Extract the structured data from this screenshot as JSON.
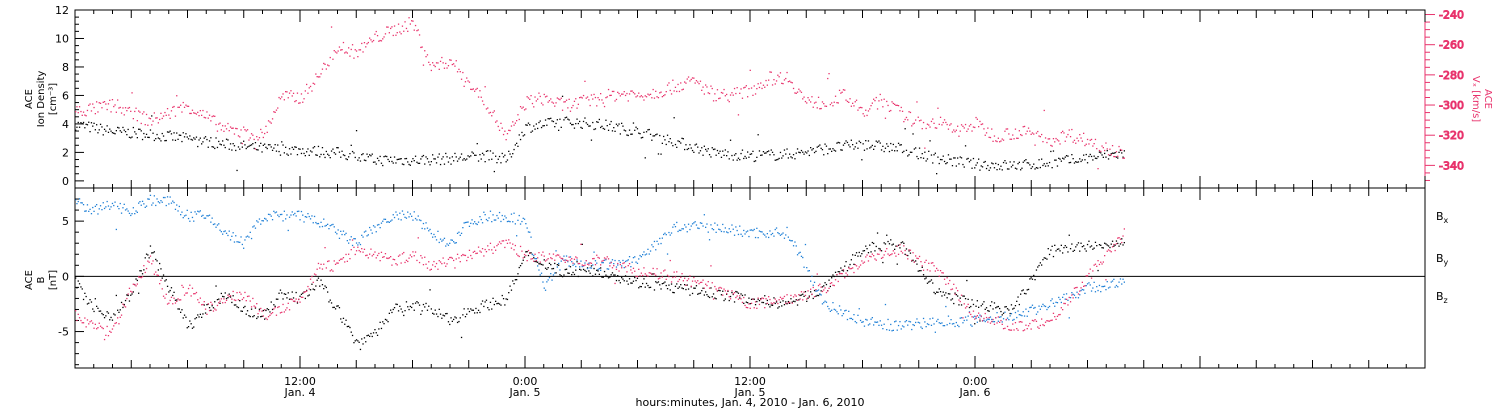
{
  "colors": {
    "black": "#000000",
    "blue": "#1e7fd6",
    "pink": "#e8336c"
  },
  "x_axis": {
    "title": "hours:minutes, Jan.  4, 2010 - Jan.  6, 2010",
    "range_hours": [
      0,
      72
    ],
    "major_ticks": [
      {
        "hour": 12,
        "time": "12:00",
        "day": "Jan. 4"
      },
      {
        "hour": 24,
        "time": "0:00",
        "day": "Jan. 5"
      },
      {
        "hour": 36,
        "time": "12:00",
        "day": "Jan. 5"
      },
      {
        "hour": 48,
        "time": "0:00",
        "day": "Jan. 6"
      }
    ],
    "minor_tick_every_hours": 1,
    "medium_tick_every_hours": 3
  },
  "chart_data": [
    {
      "type": "scatter",
      "panel": "top",
      "left_axis": {
        "label_lines": [
          "ACE",
          "Ion Density",
          "[cm⁻³]"
        ],
        "ylim": [
          -0.5,
          12
        ],
        "ticks": [
          0,
          2,
          4,
          6,
          8,
          10,
          12
        ]
      },
      "right_axis": {
        "label_lines": [
          "ACE",
          "Vₓ [km/s]"
        ],
        "ylim": [
          -355,
          -237
        ],
        "ticks": [
          -240,
          -260,
          -280,
          -300,
          -320,
          -340
        ]
      },
      "series": [
        {
          "axis": "left",
          "color": "black",
          "x_hours": [
            0,
            2,
            4,
            6,
            8,
            10,
            12,
            14,
            16,
            18,
            20,
            22,
            23,
            24,
            26,
            28,
            30,
            32,
            34,
            36,
            38,
            40,
            42,
            44,
            46,
            48,
            50,
            52,
            56
          ],
          "values": [
            4.0,
            3.5,
            3.3,
            3.0,
            2.6,
            2.3,
            2.2,
            2.0,
            1.5,
            1.5,
            1.6,
            1.8,
            1.5,
            3.8,
            4.2,
            4.0,
            3.5,
            2.8,
            2.0,
            1.8,
            1.9,
            2.3,
            2.6,
            2.3,
            1.6,
            1.2,
            1.1,
            1.3,
            2.0
          ]
        },
        {
          "axis": "right",
          "color": "pink",
          "x_hours": [
            0,
            2,
            4,
            6,
            8,
            10,
            11,
            12,
            13,
            14,
            15,
            16,
            17,
            18,
            19,
            20,
            21,
            22,
            23,
            24,
            25,
            26,
            27,
            28,
            29,
            30,
            31,
            32,
            33,
            34,
            35,
            36,
            37,
            38,
            39,
            40,
            41,
            42,
            43,
            44,
            45,
            46,
            47,
            48,
            49,
            50,
            51,
            52,
            53,
            56
          ],
          "values": [
            -304,
            -300,
            -310,
            -300,
            -316,
            -320,
            -294,
            -295,
            -280,
            -260,
            -265,
            -255,
            -250,
            -245,
            -275,
            -270,
            -285,
            -300,
            -322,
            -298,
            -295,
            -300,
            -298,
            -295,
            -292,
            -293,
            -291,
            -287,
            -284,
            -292,
            -293,
            -290,
            -282,
            -281,
            -298,
            -298,
            -293,
            -305,
            -296,
            -305,
            -312,
            -311,
            -317,
            -312,
            -320,
            -318,
            -318,
            -323,
            -319,
            -332
          ]
        }
      ]
    },
    {
      "type": "scatter",
      "panel": "bottom",
      "left_axis": {
        "label_lines": [
          "ACE",
          "B",
          "[nT]"
        ],
        "ylim": [
          -8.3,
          8
        ],
        "ticks": [
          5,
          0,
          -5
        ]
      },
      "zero_line": true,
      "series": [
        {
          "name": "Bx",
          "color": "black",
          "x_hours": [
            0,
            1,
            2,
            3,
            4,
            5,
            6,
            7,
            8,
            9,
            10,
            11,
            12,
            13,
            14,
            15,
            16,
            17,
            18,
            19,
            20,
            21,
            22,
            23,
            24,
            26,
            28,
            30,
            32,
            34,
            36,
            38,
            40,
            42,
            44,
            46,
            48,
            50,
            52,
            56
          ],
          "values": [
            -0.5,
            -3.0,
            -3.5,
            -1.5,
            2.5,
            -1.0,
            -4.5,
            -3.0,
            -1.5,
            -3.0,
            -3.5,
            -1.5,
            -2.0,
            -0.5,
            -3.0,
            -6.0,
            -5.0,
            -3.0,
            -2.5,
            -3.0,
            -4.0,
            -3.0,
            -2.5,
            -2.0,
            2.0,
            0.5,
            0.5,
            -0.5,
            -1.0,
            -1.5,
            -2.0,
            -2.5,
            -1.0,
            2.5,
            3.0,
            -1.5,
            -2.5,
            -3.0,
            2.5,
            3.0
          ]
        },
        {
          "name": "By",
          "color": "blue",
          "x_hours": [
            0,
            1,
            2,
            3,
            4,
            5,
            6,
            7,
            8,
            9,
            10,
            11,
            12,
            13,
            14,
            15,
            16,
            17,
            18,
            19,
            20,
            21,
            22,
            23,
            24,
            25,
            26,
            28,
            30,
            32,
            34,
            36,
            38,
            40,
            42,
            44,
            46,
            48,
            50,
            52,
            54,
            56
          ],
          "values": [
            6.8,
            6.0,
            6.5,
            6.0,
            7.0,
            6.8,
            5.5,
            5.5,
            4.0,
            3.0,
            5.5,
            5.5,
            5.5,
            5.0,
            4.0,
            3.0,
            4.5,
            5.5,
            5.5,
            4.0,
            3.0,
            5.0,
            5.5,
            5.5,
            5.0,
            -1.0,
            1.5,
            1.0,
            1.5,
            4.5,
            4.5,
            4.0,
            4.0,
            -2.5,
            -4.0,
            -4.5,
            -4.0,
            -4.0,
            -3.5,
            -2.5,
            -1.0,
            -0.5
          ]
        },
        {
          "name": "Bz",
          "color": "pink",
          "x_hours": [
            0,
            1,
            2,
            3,
            4,
            5,
            6,
            7,
            8,
            9,
            10,
            11,
            12,
            13,
            14,
            15,
            16,
            17,
            18,
            19,
            20,
            21,
            22,
            23,
            24,
            26,
            28,
            30,
            32,
            34,
            36,
            38,
            40,
            42,
            44,
            46,
            48,
            50,
            52,
            56
          ],
          "values": [
            -3.5,
            -4.5,
            -5.0,
            -1.0,
            1.5,
            -2.5,
            -1.0,
            -3.0,
            -2.0,
            -1.5,
            -3.5,
            -3.0,
            -2.0,
            1.0,
            1.0,
            2.5,
            2.0,
            1.5,
            2.0,
            1.0,
            1.5,
            2.0,
            2.5,
            3.0,
            2.0,
            1.5,
            1.5,
            0.5,
            0.0,
            -1.0,
            -2.5,
            -2.0,
            -1.0,
            1.5,
            2.5,
            0.5,
            -3.5,
            -4.5,
            -4.0,
            4.0
          ]
        }
      ],
      "legend": {
        "placement": "right",
        "entries": [
          {
            "label": "B",
            "sub": "x",
            "color": "black"
          },
          {
            "label": "B",
            "sub": "y",
            "color": "blue"
          },
          {
            "label": "B",
            "sub": "z",
            "color": "pink"
          }
        ]
      }
    }
  ]
}
